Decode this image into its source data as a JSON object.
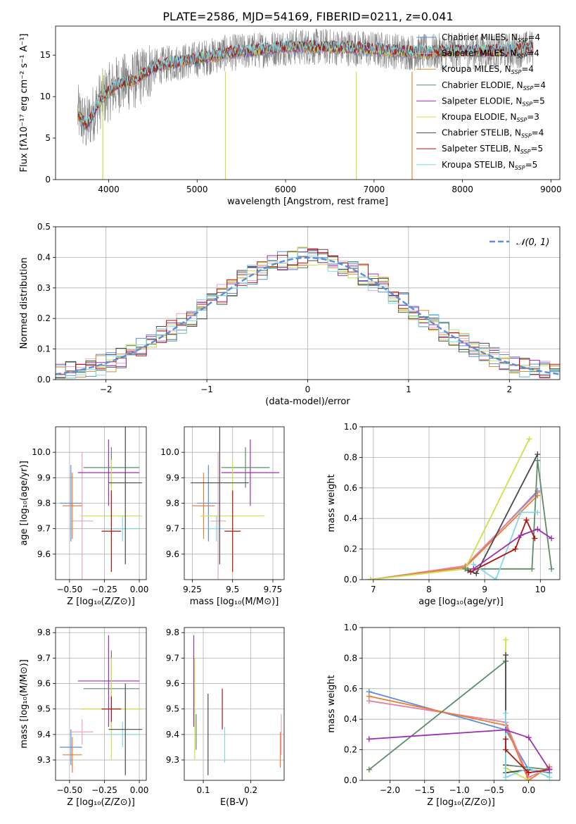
{
  "figure_title": "PLATE=2586, MJD=54169, FIBERID=0211, z=0.041",
  "colors": {
    "chabrier_miles": "#5b8fd9",
    "salpeter_miles": "#e7a5c6",
    "kroupa_miles": "#d98d2f",
    "chabrier_elodie": "#3f7d4f",
    "salpeter_elodie": "#9b2fb0",
    "kroupa_elodie": "#c9e24a",
    "chabrier_stelib": "#4a4a4a",
    "salpeter_stelib": "#b01515",
    "kroupa_stelib": "#80d8e6",
    "normal": "#5b8fd9",
    "orange": "#ee7d2e",
    "pink": "#e57fa6",
    "gray": "#808080",
    "green": "#5e8c6a"
  },
  "chart_data": [
    {
      "id": "spectrum",
      "type": "line",
      "xlabel": "wavelength [Angstrom, rest frame]",
      "ylabel": "Flux [fλ10⁻¹⁷ erg cm⁻² s⁻¹ A⁻¹]",
      "xlim": [
        3400,
        9100
      ],
      "ylim": [
        0,
        18.5
      ],
      "xticks": [
        4000,
        5000,
        6000,
        7000,
        8000,
        9000
      ],
      "yticks": [
        0,
        5,
        10,
        15
      ],
      "legend_position": "top-right",
      "legend": [
        {
          "name": "Chabrier MILES, N_SSP=4",
          "label": "Chabrier MILES, N",
          "n": "4",
          "color": "#5b8fd9"
        },
        {
          "name": "Salpeter MILES, N_SSP=4",
          "label": "Salpeter MILES, N",
          "n": "4",
          "color": "#e7a5c6"
        },
        {
          "name": "Kroupa MILES, N_SSP=4",
          "label": "Kroupa MILES, N",
          "n": "4",
          "color": "#d98d2f"
        },
        {
          "name": "Chabrier ELODIE, N_SSP=4",
          "label": "Chabrier ELODIE, N",
          "n": "4",
          "color": "#5e8c6a"
        },
        {
          "name": "Salpeter ELODIE, N_SSP=5",
          "label": "Salpeter ELODIE, N",
          "n": "5",
          "color": "#9b2fb0"
        },
        {
          "name": "Kroupa ELODIE, N_SSP=3",
          "label": "Kroupa ELODIE, N",
          "n": "3",
          "color": "#c9e24a"
        },
        {
          "name": "Chabrier STELIB, N_SSP=4",
          "label": "Chabrier STELIB, N",
          "n": "4",
          "color": "#4a4a4a"
        },
        {
          "name": "Salpeter STELIB, N_SSP=5",
          "label": "Salpeter STELIB, N",
          "n": "5",
          "color": "#b01515"
        },
        {
          "name": "Kroupa STELIB, N_SSP=5",
          "label": "Kroupa STELIB, N",
          "n": "5",
          "color": "#80d8e6"
        }
      ],
      "continuum": [
        [
          3650,
          8.0
        ],
        [
          3750,
          6.5
        ],
        [
          3900,
          9.5
        ],
        [
          4000,
          10.5
        ],
        [
          4100,
          11.5
        ],
        [
          4300,
          12.0
        ],
        [
          4500,
          13.5
        ],
        [
          4700,
          14.0
        ],
        [
          5000,
          14.5
        ],
        [
          5300,
          15.2
        ],
        [
          5600,
          15.5
        ],
        [
          6000,
          16.0
        ],
        [
          6500,
          16.0
        ],
        [
          7000,
          15.7
        ],
        [
          7500,
          15.3
        ],
        [
          8000,
          15.5
        ],
        [
          8500,
          15.5
        ],
        [
          8800,
          15.8
        ]
      ],
      "dips": [
        [
          3934,
          0
        ],
        [
          5320,
          0
        ],
        [
          6800,
          0
        ],
        [
          7430,
          0
        ]
      ],
      "grid": false
    },
    {
      "id": "residuals",
      "type": "area",
      "xlabel": "(data-model)/error",
      "ylabel": "Normed distribution",
      "xlim": [
        -2.5,
        2.5
      ],
      "ylim": [
        0,
        0.5
      ],
      "xticks": [
        -2,
        -1,
        0,
        1,
        2
      ],
      "yticks": [
        0.0,
        0.1,
        0.2,
        0.3,
        0.4,
        0.5
      ],
      "legend": "𝒩(0, 1)",
      "legend_position": "top-right",
      "grid": true,
      "bin_width": 0.1
    },
    {
      "id": "age-Z",
      "type": "scatter",
      "xlabel": "Z [log₁₀(Z/Z⊙)]",
      "ylabel": "age  [log₁₀(age/yr)]",
      "xlim": [
        -0.6,
        0.05
      ],
      "ylim": [
        9.5,
        10.1
      ],
      "xticks": [
        -0.5,
        -0.25,
        0.0
      ],
      "xticklabels": [
        "−0.50",
        "−0.25",
        "0.00"
      ],
      "yticks": [
        9.6,
        9.7,
        9.8,
        9.9,
        10.0
      ],
      "grid": true,
      "points": [
        {
          "x": -0.49,
          "y": 9.8,
          "xerr": 0.08,
          "yerr": 0.15,
          "color": "#5b8fd9"
        },
        {
          "x": -0.41,
          "y": 9.73,
          "xerr": 0.08,
          "yerr": 0.27,
          "color": "#e7a5c6"
        },
        {
          "x": -0.48,
          "y": 9.79,
          "xerr": 0.07,
          "yerr": 0.13,
          "color": "#ee7d2e"
        },
        {
          "x": -0.22,
          "y": 9.92,
          "xerr": 0.22,
          "yerr": 0.13,
          "color": "#9b2fb0"
        },
        {
          "x": -0.2,
          "y": 9.94,
          "xerr": 0.2,
          "yerr": 0.08,
          "color": "#5e8c6a"
        },
        {
          "x": -0.2,
          "y": 9.75,
          "xerr": 0.22,
          "yerr": 0.22,
          "color": "#c9e24a"
        },
        {
          "x": -0.12,
          "y": 9.7,
          "xerr": 0.12,
          "yerr": 0.05,
          "color": "#80d8e6"
        },
        {
          "x": -0.1,
          "y": 9.88,
          "xerr": 0.12,
          "yerr": 0.32,
          "color": "#4a4a4a"
        },
        {
          "x": -0.2,
          "y": 9.69,
          "xerr": 0.07,
          "yerr": 0.16,
          "color": "#b01515"
        }
      ]
    },
    {
      "id": "age-mass",
      "type": "scatter",
      "xlabel": "mass [log₁₀(M/M⊙)]",
      "ylabel": "",
      "xlim": [
        9.2,
        9.82
      ],
      "ylim": [
        9.5,
        10.1
      ],
      "xticks": [
        9.25,
        9.5,
        9.75
      ],
      "yticks": [
        9.6,
        9.7,
        9.8,
        9.9,
        10.0
      ],
      "grid": true,
      "points": [
        {
          "x": 9.35,
          "y": 9.8,
          "xerr": 0.07,
          "yerr": 0.15,
          "color": "#5b8fd9"
        },
        {
          "x": 9.41,
          "y": 9.73,
          "xerr": 0.05,
          "yerr": 0.27,
          "color": "#e7a5c6"
        },
        {
          "x": 9.32,
          "y": 9.79,
          "xerr": 0.07,
          "yerr": 0.13,
          "color": "#ee7d2e"
        },
        {
          "x": 9.61,
          "y": 9.92,
          "xerr": 0.18,
          "yerr": 0.13,
          "color": "#9b2fb0"
        },
        {
          "x": 9.58,
          "y": 9.94,
          "xerr": 0.15,
          "yerr": 0.08,
          "color": "#5e8c6a"
        },
        {
          "x": 9.5,
          "y": 9.75,
          "xerr": 0.2,
          "yerr": 0.22,
          "color": "#c9e24a"
        },
        {
          "x": 9.4,
          "y": 9.7,
          "xerr": 0.05,
          "yerr": 0.05,
          "color": "#80d8e6"
        },
        {
          "x": 9.42,
          "y": 9.88,
          "xerr": 0.18,
          "yerr": 0.32,
          "color": "#4a4a4a"
        },
        {
          "x": 9.5,
          "y": 9.69,
          "xerr": 0.05,
          "yerr": 0.16,
          "color": "#b01515"
        }
      ]
    },
    {
      "id": "weight-age",
      "type": "line",
      "xlabel": "age  [log₁₀(age/yr)]",
      "ylabel": "mass weight",
      "xlim": [
        6.8,
        10.35
      ],
      "ylim": [
        0,
        1.0
      ],
      "xticks": [
        7,
        8,
        9,
        10
      ],
      "yticks": [
        0.0,
        0.2,
        0.4,
        0.6,
        0.8,
        1.0
      ],
      "grid": true,
      "series": [
        {
          "color": "#5b8fd9",
          "x": [
            6.95,
            8.65,
            9.95
          ],
          "y": [
            0.0,
            0.08,
            0.58
          ]
        },
        {
          "color": "#e57fa6",
          "x": [
            6.95,
            8.65,
            9.95
          ],
          "y": [
            0.0,
            0.09,
            0.57
          ]
        },
        {
          "color": "#ee7d2e",
          "x": [
            6.95,
            8.65,
            9.95
          ],
          "y": [
            0.0,
            0.08,
            0.55
          ]
        },
        {
          "color": "#c9e24a",
          "x": [
            6.95,
            8.65,
            9.8
          ],
          "y": [
            0.0,
            0.07,
            0.92
          ]
        },
        {
          "color": "#4a4a4a",
          "x": [
            8.7,
            8.85,
            9.95
          ],
          "y": [
            0.06,
            0.04,
            0.82
          ]
        },
        {
          "color": "#5e8c6a",
          "x": [
            8.65,
            9.85,
            9.95,
            10.2
          ],
          "y": [
            0.07,
            0.07,
            0.78,
            0.07
          ]
        },
        {
          "color": "#80d8e6",
          "x": [
            8.8,
            9.2,
            9.65,
            9.95
          ],
          "y": [
            0.1,
            0.0,
            0.44,
            0.44
          ]
        },
        {
          "color": "#b01515",
          "x": [
            8.75,
            9.55,
            9.75,
            9.9
          ],
          "y": [
            0.05,
            0.2,
            0.39,
            0.27
          ]
        },
        {
          "color": "#9b2fb0",
          "x": [
            8.8,
            9.65,
            9.95,
            10.2
          ],
          "y": [
            0.07,
            0.29,
            0.33,
            0.27
          ]
        }
      ]
    },
    {
      "id": "mass-Z",
      "type": "scatter",
      "xlabel": "Z [log₁₀(Z/Z⊙)]",
      "ylabel": "mass [log₁₀(M/M⊙)]",
      "xlim": [
        -0.6,
        0.05
      ],
      "ylim": [
        9.22,
        9.82
      ],
      "xticks": [
        -0.5,
        -0.25,
        0.0
      ],
      "xticklabels": [
        "−0.50",
        "−0.25",
        "0.00"
      ],
      "yticks": [
        9.3,
        9.4,
        9.5,
        9.6,
        9.7,
        9.8
      ],
      "grid": true,
      "points": [
        {
          "x": -0.49,
          "y": 9.35,
          "xerr": 0.08,
          "yerr": 0.07,
          "color": "#5b8fd9"
        },
        {
          "x": -0.41,
          "y": 9.41,
          "xerr": 0.08,
          "yerr": 0.05,
          "color": "#e7a5c6"
        },
        {
          "x": -0.48,
          "y": 9.32,
          "xerr": 0.07,
          "yerr": 0.07,
          "color": "#ee7d2e"
        },
        {
          "x": -0.22,
          "y": 9.61,
          "xerr": 0.22,
          "yerr": 0.18,
          "color": "#9b2fb0"
        },
        {
          "x": -0.2,
          "y": 9.58,
          "xerr": 0.2,
          "yerr": 0.15,
          "color": "#5e8c6a"
        },
        {
          "x": -0.2,
          "y": 9.5,
          "xerr": 0.22,
          "yerr": 0.2,
          "color": "#c9e24a"
        },
        {
          "x": -0.12,
          "y": 9.4,
          "xerr": 0.12,
          "yerr": 0.05,
          "color": "#80d8e6"
        },
        {
          "x": -0.1,
          "y": 9.42,
          "xerr": 0.12,
          "yerr": 0.18,
          "color": "#4a4a4a"
        },
        {
          "x": -0.2,
          "y": 9.5,
          "xerr": 0.07,
          "yerr": 0.05,
          "color": "#b01515"
        }
      ]
    },
    {
      "id": "mass-EBV",
      "type": "scatter",
      "xlabel": "E(B-V)",
      "ylabel": "",
      "xlim": [
        0.06,
        0.27
      ],
      "ylim": [
        9.22,
        9.82
      ],
      "xticks": [
        0.1,
        0.2
      ],
      "yticks": [
        9.3,
        9.4,
        9.5,
        9.6,
        9.7,
        9.8
      ],
      "grid": true,
      "points": [
        {
          "x": 0.08,
          "y": 9.61,
          "xerr": 0,
          "yerr": 0.18,
          "color": "#9b2fb0"
        },
        {
          "x": 0.082,
          "y": 9.5,
          "xerr": 0,
          "yerr": 0.2,
          "color": "#c9e24a"
        },
        {
          "x": 0.085,
          "y": 9.41,
          "xerr": 0,
          "yerr": 0.07,
          "color": "#5e8c6a"
        },
        {
          "x": 0.11,
          "y": 9.4,
          "xerr": 0,
          "yerr": 0.16,
          "color": "#4a4a4a"
        },
        {
          "x": 0.14,
          "y": 9.5,
          "xerr": 0,
          "yerr": 0.08,
          "color": "#b01515"
        },
        {
          "x": 0.145,
          "y": 9.36,
          "xerr": 0,
          "yerr": 0.07,
          "color": "#80d8e6"
        },
        {
          "x": 0.262,
          "y": 9.34,
          "xerr": 0,
          "yerr": 0.07,
          "color": "#ee7d2e"
        },
        {
          "x": 0.264,
          "y": 9.4,
          "xerr": 0,
          "yerr": 0.08,
          "color": "#e7a5c6"
        }
      ]
    },
    {
      "id": "weight-Z",
      "type": "line",
      "xlabel": "Z [log₁₀(Z/Z⊙)]",
      "ylabel": "mass weight",
      "xlim": [
        -2.4,
        0.45
      ],
      "ylim": [
        0,
        1.0
      ],
      "xticks": [
        -2.0,
        -1.5,
        -1.0,
        -0.5,
        0.0
      ],
      "xticklabels": [
        "−2.0",
        "−1.5",
        "−1.0",
        "−0.5",
        "0.0"
      ],
      "yticks": [
        0.0,
        0.2,
        0.4,
        0.6,
        0.8,
        1.0
      ],
      "grid": true,
      "series": [
        {
          "color": "#5b8fd9",
          "x": [
            -2.3,
            -0.33,
            -0.0,
            0.3
          ],
          "y": [
            0.58,
            0.33,
            0.07,
            0.05
          ]
        },
        {
          "color": "#e57fa6",
          "x": [
            -2.3,
            -0.33,
            -0.0,
            0.3
          ],
          "y": [
            0.52,
            0.38,
            0.02,
            0.08
          ]
        },
        {
          "color": "#ee7d2e",
          "x": [
            -2.3,
            -0.33,
            -0.0,
            0.3
          ],
          "y": [
            0.55,
            0.36,
            0.0,
            0.09
          ]
        },
        {
          "color": "#5e8c6a",
          "x": [
            -2.3,
            -0.33,
            -0.33,
            0.3
          ],
          "y": [
            0.07,
            0.78,
            0.1,
            0.07
          ]
        },
        {
          "color": "#c9e24a",
          "x": [
            -0.33,
            -0.33,
            0.0
          ],
          "y": [
            0.92,
            0.08,
            0.0
          ]
        },
        {
          "color": "#4a4a4a",
          "x": [
            -0.33,
            -0.33,
            -0.33,
            0.0
          ],
          "y": [
            0.82,
            0.1,
            0.05,
            0.07
          ]
        },
        {
          "color": "#80d8e6",
          "x": [
            -0.33,
            -0.33,
            0.0,
            0.3
          ],
          "y": [
            0.44,
            0.02,
            0.08,
            0.02
          ]
        },
        {
          "color": "#b01515",
          "x": [
            -0.33,
            -0.33,
            0.0,
            0.3
          ],
          "y": [
            0.27,
            0.2,
            0.05,
            0.07
          ]
        },
        {
          "color": "#9b2fb0",
          "x": [
            -2.3,
            -0.33,
            -0.0,
            0.3
          ],
          "y": [
            0.27,
            0.33,
            0.28,
            0.07
          ]
        }
      ]
    }
  ]
}
